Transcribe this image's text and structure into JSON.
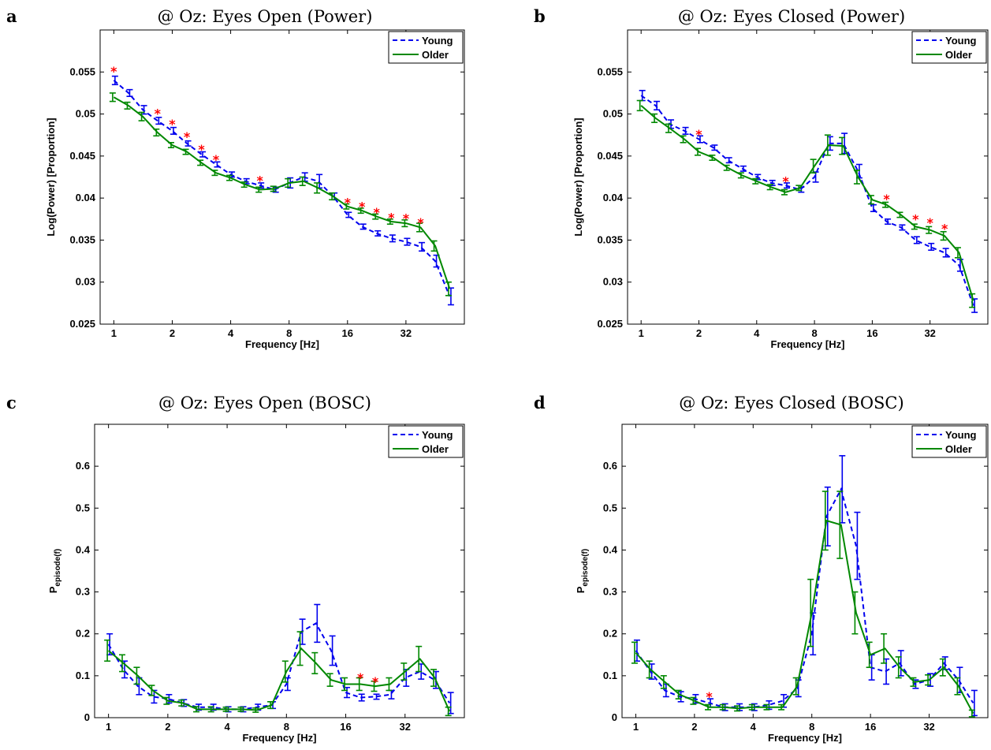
{
  "colors": {
    "young": "#0000ee",
    "older": "#008800",
    "star": "#ff0000"
  },
  "chart_data": [
    {
      "id": "a",
      "panel": "a",
      "type": "line",
      "title": "@ Oz: Eyes Open (Power)",
      "xlabel": "Frequency [Hz]",
      "ylabel": "Log(Power) [Proportion]",
      "xscale": "log2",
      "xlim": [
        0.85,
        64
      ],
      "ylim": [
        0.025,
        0.06
      ],
      "xticks": [
        1,
        2,
        4,
        8,
        16,
        32
      ],
      "xtick_labels": [
        "1",
        "2",
        "4",
        "8",
        "16",
        "32"
      ],
      "yticks": [
        0.025,
        0.03,
        0.035,
        0.04,
        0.045,
        0.05,
        0.055
      ],
      "ytick_labels": [
        "0.025",
        "0.03",
        "0.035",
        "0.04",
        "0.045",
        "0.05",
        "0.055"
      ],
      "legend": "top-right",
      "x": [
        1,
        1.19,
        1.41,
        1.68,
        2,
        2.38,
        2.83,
        3.36,
        4,
        4.76,
        5.66,
        6.73,
        8,
        9.51,
        11.3,
        13.5,
        16,
        19,
        22.6,
        26.9,
        32,
        38.1,
        45.3,
        53.8
      ],
      "series": [
        {
          "name": "Young",
          "style": "dashed",
          "values": [
            0.054,
            0.0525,
            0.0505,
            0.0492,
            0.048,
            0.0465,
            0.0452,
            0.044,
            0.0428,
            0.042,
            0.0415,
            0.041,
            0.0418,
            0.0425,
            0.042,
            0.0402,
            0.038,
            0.0366,
            0.0358,
            0.0352,
            0.0348,
            0.0342,
            0.0325,
            0.0283
          ],
          "err": [
            0.0005,
            0.0004,
            0.0005,
            0.0004,
            0.0004,
            0.0003,
            0.0003,
            0.0003,
            0.0003,
            0.0003,
            0.0003,
            0.0003,
            0.0006,
            0.0005,
            0.0008,
            0.0004,
            0.0003,
            0.0003,
            0.0003,
            0.0004,
            0.0004,
            0.0005,
            0.0007,
            0.001
          ]
        },
        {
          "name": "Older",
          "style": "solid",
          "values": [
            0.052,
            0.051,
            0.0497,
            0.0478,
            0.0463,
            0.0455,
            0.0442,
            0.043,
            0.0424,
            0.0416,
            0.041,
            0.0411,
            0.0418,
            0.042,
            0.0412,
            0.0402,
            0.039,
            0.0385,
            0.0378,
            0.0372,
            0.037,
            0.0365,
            0.0343,
            0.0292
          ],
          "err": [
            0.0005,
            0.0004,
            0.0005,
            0.0004,
            0.0003,
            0.0003,
            0.0003,
            0.0003,
            0.0003,
            0.0003,
            0.0003,
            0.0003,
            0.0005,
            0.0005,
            0.0006,
            0.0004,
            0.0003,
            0.0003,
            0.0003,
            0.0003,
            0.0004,
            0.0005,
            0.0006,
            0.0008
          ]
        }
      ],
      "annotations": [
        {
          "text": "*",
          "x": 1,
          "y": 0.0553
        },
        {
          "text": "*",
          "x": 1.68,
          "y": 0.0503
        },
        {
          "text": "*",
          "x": 2,
          "y": 0.049
        },
        {
          "text": "*",
          "x": 2.38,
          "y": 0.0475
        },
        {
          "text": "*",
          "x": 2.83,
          "y": 0.046
        },
        {
          "text": "*",
          "x": 3.36,
          "y": 0.0448
        },
        {
          "text": "*",
          "x": 5.66,
          "y": 0.0423
        },
        {
          "text": "*",
          "x": 16,
          "y": 0.0397
        },
        {
          "text": "*",
          "x": 19,
          "y": 0.0392
        },
        {
          "text": "*",
          "x": 22.6,
          "y": 0.0385
        },
        {
          "text": "*",
          "x": 26.9,
          "y": 0.0379
        },
        {
          "text": "*",
          "x": 32,
          "y": 0.0378
        },
        {
          "text": "*",
          "x": 38.1,
          "y": 0.0373
        }
      ]
    },
    {
      "id": "b",
      "panel": "b",
      "type": "line",
      "title": "@ Oz: Eyes Closed (Power)",
      "xlabel": "Frequency [Hz]",
      "ylabel": "Log(Power) [Proportion]",
      "xscale": "log2",
      "xlim": [
        0.85,
        64
      ],
      "ylim": [
        0.025,
        0.06
      ],
      "xticks": [
        1,
        2,
        4,
        8,
        16,
        32
      ],
      "xtick_labels": [
        "1",
        "2",
        "4",
        "8",
        "16",
        "32"
      ],
      "yticks": [
        0.025,
        0.03,
        0.035,
        0.04,
        0.045,
        0.05,
        0.055
      ],
      "ytick_labels": [
        "0.025",
        "0.03",
        "0.035",
        "0.04",
        "0.045",
        "0.05",
        "0.055"
      ],
      "legend": "top-right",
      "x": [
        1,
        1.19,
        1.41,
        1.68,
        2,
        2.38,
        2.83,
        3.36,
        4,
        4.76,
        5.66,
        6.73,
        8,
        9.51,
        11.3,
        13.5,
        16,
        19,
        22.6,
        26.9,
        32,
        38.1,
        45.3,
        53.8
      ],
      "series": [
        {
          "name": "Young",
          "style": "dashed",
          "values": [
            0.0522,
            0.051,
            0.0488,
            0.048,
            0.047,
            0.046,
            0.0445,
            0.0435,
            0.0425,
            0.0418,
            0.0415,
            0.041,
            0.0425,
            0.0465,
            0.0465,
            0.0432,
            0.0388,
            0.0372,
            0.0365,
            0.035,
            0.0342,
            0.0335,
            0.032,
            0.0272
          ],
          "err": [
            0.0006,
            0.0005,
            0.0005,
            0.0004,
            0.0004,
            0.0003,
            0.0003,
            0.0003,
            0.0003,
            0.0003,
            0.0003,
            0.0003,
            0.0006,
            0.0008,
            0.0012,
            0.0008,
            0.0004,
            0.0003,
            0.0003,
            0.0004,
            0.0004,
            0.0005,
            0.0007,
            0.0008
          ]
        },
        {
          "name": "Older",
          "style": "solid",
          "values": [
            0.051,
            0.0495,
            0.0483,
            0.047,
            0.0455,
            0.0448,
            0.0436,
            0.0427,
            0.042,
            0.0413,
            0.0407,
            0.0412,
            0.0438,
            0.0463,
            0.0462,
            0.0425,
            0.0398,
            0.0392,
            0.038,
            0.0366,
            0.0362,
            0.0355,
            0.0335,
            0.0278
          ],
          "err": [
            0.0006,
            0.0005,
            0.0005,
            0.0004,
            0.0004,
            0.0003,
            0.0003,
            0.0003,
            0.0003,
            0.0003,
            0.0003,
            0.0003,
            0.0008,
            0.0012,
            0.001,
            0.0008,
            0.0005,
            0.0003,
            0.0003,
            0.0003,
            0.0004,
            0.0005,
            0.0006,
            0.0008
          ]
        }
      ],
      "annotations": [
        {
          "text": "*",
          "x": 2,
          "y": 0.0478
        },
        {
          "text": "*",
          "x": 5.66,
          "y": 0.0422
        },
        {
          "text": "*",
          "x": 19,
          "y": 0.0401
        },
        {
          "text": "*",
          "x": 26.9,
          "y": 0.0377
        },
        {
          "text": "*",
          "x": 32,
          "y": 0.0373
        },
        {
          "text": "*",
          "x": 38.1,
          "y": 0.0366
        }
      ]
    },
    {
      "id": "c",
      "panel": "c",
      "type": "line",
      "title": "@ Oz: Eyes Open (BOSC)",
      "xlabel": "Frequency [Hz]",
      "ylabel_main": "P",
      "ylabel_sub": "episode(f)",
      "xscale": "log2",
      "xlim": [
        0.85,
        64
      ],
      "ylim": [
        0,
        0.7
      ],
      "xticks": [
        1,
        2,
        4,
        8,
        16,
        32
      ],
      "xtick_labels": [
        "1",
        "2",
        "4",
        "8",
        "16",
        "32"
      ],
      "yticks": [
        0,
        0.1,
        0.2,
        0.3,
        0.4,
        0.5,
        0.6
      ],
      "ytick_labels": [
        "0",
        "0.1",
        "0.2",
        "0.3",
        "0.4",
        "0.5",
        "0.6"
      ],
      "legend": "top-right",
      "x": [
        1,
        1.19,
        1.41,
        1.68,
        2,
        2.38,
        2.83,
        3.36,
        4,
        4.76,
        5.66,
        6.73,
        8,
        9.51,
        11.3,
        13.5,
        16,
        19,
        22.6,
        26.9,
        32,
        38.1,
        45.3,
        53.8
      ],
      "series": [
        {
          "name": "Young",
          "style": "dashed",
          "values": [
            0.175,
            0.115,
            0.075,
            0.05,
            0.045,
            0.035,
            0.025,
            0.025,
            0.02,
            0.02,
            0.025,
            0.03,
            0.08,
            0.205,
            0.225,
            0.16,
            0.06,
            0.048,
            0.05,
            0.055,
            0.095,
            0.11,
            0.09,
            0.035
          ],
          "err": [
            0.025,
            0.02,
            0.02,
            0.015,
            0.01,
            0.008,
            0.007,
            0.007,
            0.006,
            0.006,
            0.007,
            0.008,
            0.015,
            0.03,
            0.045,
            0.035,
            0.012,
            0.008,
            0.006,
            0.01,
            0.02,
            0.018,
            0.02,
            0.025
          ]
        },
        {
          "name": "Older",
          "style": "solid",
          "values": [
            0.16,
            0.13,
            0.1,
            0.065,
            0.04,
            0.035,
            0.02,
            0.02,
            0.02,
            0.02,
            0.018,
            0.03,
            0.11,
            0.165,
            0.13,
            0.09,
            0.08,
            0.08,
            0.075,
            0.08,
            0.11,
            0.14,
            0.095,
            0.015
          ],
          "err": [
            0.025,
            0.02,
            0.02,
            0.012,
            0.008,
            0.007,
            0.006,
            0.006,
            0.005,
            0.005,
            0.005,
            0.008,
            0.025,
            0.04,
            0.025,
            0.015,
            0.015,
            0.015,
            0.012,
            0.015,
            0.02,
            0.03,
            0.02,
            0.01
          ]
        }
      ],
      "annotations": [
        {
          "text": "*",
          "x": 19,
          "y": 0.1
        },
        {
          "text": "*",
          "x": 22.6,
          "y": 0.09
        }
      ]
    },
    {
      "id": "d",
      "panel": "d",
      "type": "line",
      "title": "@ Oz: Eyes Closed (BOSC)",
      "xlabel": "Frequency [Hz]",
      "ylabel_main": "P",
      "ylabel_sub": "episode(f)",
      "xscale": "log2",
      "xlim": [
        0.85,
        64
      ],
      "ylim": [
        0,
        0.7
      ],
      "xticks": [
        1,
        2,
        4,
        8,
        16,
        32
      ],
      "xtick_labels": [
        "1",
        "2",
        "4",
        "8",
        "16",
        "32"
      ],
      "yticks": [
        0,
        0.1,
        0.2,
        0.3,
        0.4,
        0.5,
        0.6
      ],
      "ytick_labels": [
        "0",
        "0.1",
        "0.2",
        "0.3",
        "0.4",
        "0.5",
        "0.6"
      ],
      "legend": "top-right",
      "x": [
        1,
        1.19,
        1.41,
        1.68,
        2,
        2.38,
        2.83,
        3.36,
        4,
        4.76,
        5.66,
        6.73,
        8,
        9.51,
        11.3,
        13.5,
        16,
        19,
        22.6,
        26.9,
        32,
        38.1,
        45.3,
        53.8
      ],
      "series": [
        {
          "name": "Young",
          "style": "dashed",
          "values": [
            0.16,
            0.11,
            0.065,
            0.05,
            0.045,
            0.035,
            0.025,
            0.025,
            0.025,
            0.03,
            0.04,
            0.07,
            0.2,
            0.48,
            0.545,
            0.41,
            0.12,
            0.11,
            0.13,
            0.08,
            0.09,
            0.13,
            0.09,
            0.035
          ],
          "err": [
            0.025,
            0.018,
            0.015,
            0.012,
            0.01,
            0.01,
            0.008,
            0.008,
            0.008,
            0.01,
            0.015,
            0.02,
            0.05,
            0.07,
            0.08,
            0.08,
            0.03,
            0.03,
            0.03,
            0.01,
            0.015,
            0.015,
            0.03,
            0.03
          ]
        },
        {
          "name": "Older",
          "style": "solid",
          "values": [
            0.155,
            0.115,
            0.085,
            0.055,
            0.04,
            0.025,
            0.025,
            0.022,
            0.025,
            0.025,
            0.025,
            0.075,
            0.25,
            0.47,
            0.46,
            0.25,
            0.15,
            0.165,
            0.12,
            0.085,
            0.09,
            0.12,
            0.075,
            0.01
          ],
          "err": [
            0.025,
            0.02,
            0.015,
            0.01,
            0.008,
            0.006,
            0.006,
            0.006,
            0.006,
            0.006,
            0.006,
            0.02,
            0.08,
            0.07,
            0.08,
            0.05,
            0.03,
            0.035,
            0.025,
            0.01,
            0.012,
            0.02,
            0.02,
            0.008
          ]
        }
      ],
      "annotations": [
        {
          "text": "*",
          "x": 2.38,
          "y": 0.055
        }
      ]
    }
  ]
}
